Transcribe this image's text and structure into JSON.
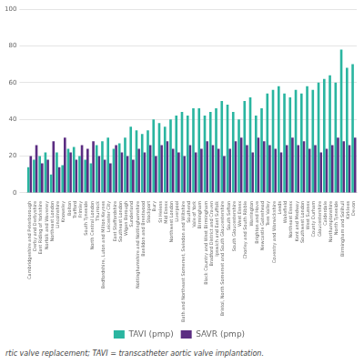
{
  "chart_data": {
    "type": "bar",
    "categories": [
      "Cambridgeshire and Peterborough",
      "Derby and Derbyshire",
      "East Riding of Yorkshire",
      "Norfolk and Waveney",
      "Northeast London",
      "Lincolnshire",
      "Knowsley",
      "Bolton",
      "Trafford",
      "Frimley",
      "South Tyneside",
      "North Central London",
      "Thurrock",
      "Bedfordshire, Luton and Milton Keynes",
      "Leicester City",
      "East Staffordshire",
      "Southeast London",
      "Wigan Borough",
      "Sunderland",
      "Nottinghamshire and Nottinghamshire",
      "Basildon and Brentwood",
      "Stockport",
      "Bury",
      "St Helens",
      "Mid Essex",
      "Northwest London",
      "Liverpool",
      "Bath and Northeast Somerset, Swindon and Wiltshire",
      "Southend",
      "Vale of York",
      "Birmingham",
      "Black Country and West Birmingham",
      "Bradford District and Craven",
      "Ipswich and East Suffolk",
      "Bristol, North Somerset and South Gloucestershire",
      "South Sefton",
      "South Gloucestershire",
      "West Essex",
      "Chorley and South Ribble",
      "Warrington",
      "Brighton and Hove",
      "Newcastle Gateshead",
      "Tees Valley",
      "Coventry and Warwickshire",
      "Leeds",
      "Wakefield",
      "Northeast Essex",
      "Kent and Medway",
      "Southwest London",
      "West Sussex",
      "County Durham",
      "Gloucestershire",
      "Calderdale",
      "Northamptonshire",
      "North Tyneside",
      "Birmingham and Solihull",
      "Kirklees",
      "Devon"
    ],
    "series": [
      {
        "name": "TAVI (pmp)",
        "color": "#2ab5a0",
        "values": [
          14,
          18,
          20,
          22,
          10,
          22,
          15,
          24,
          25,
          20,
          18,
          16,
          26,
          28,
          30,
          24,
          27,
          30,
          36,
          34,
          32,
          34,
          40,
          38,
          36,
          40,
          42,
          44,
          42,
          46,
          46,
          42,
          44,
          46,
          50,
          48,
          44,
          40,
          50,
          52,
          42,
          46,
          54,
          56,
          58,
          54,
          52,
          56,
          54,
          58,
          56,
          60,
          62,
          64,
          60,
          78,
          68,
          70
        ]
      },
      {
        "name": "SAVR (pmp)",
        "color": "#5b2d82",
        "values": [
          20,
          26,
          16,
          18,
          28,
          14,
          30,
          22,
          18,
          26,
          24,
          28,
          20,
          18,
          16,
          26,
          22,
          20,
          18,
          24,
          22,
          26,
          20,
          26,
          28,
          24,
          22,
          20,
          26,
          22,
          24,
          28,
          26,
          24,
          20,
          24,
          28,
          30,
          26,
          22,
          30,
          28,
          26,
          24,
          22,
          26,
          30,
          26,
          28,
          24,
          26,
          22,
          24,
          26,
          30,
          28,
          26,
          30
        ]
      }
    ],
    "ylim": [
      0,
      100
    ],
    "yticks": [
      0,
      20,
      40,
      60,
      80,
      100
    ],
    "grid": true,
    "legend": "bottom",
    "annotations": [
      "rtic valve replacement; TAVI = transcatheter aortic valve implantation."
    ]
  }
}
